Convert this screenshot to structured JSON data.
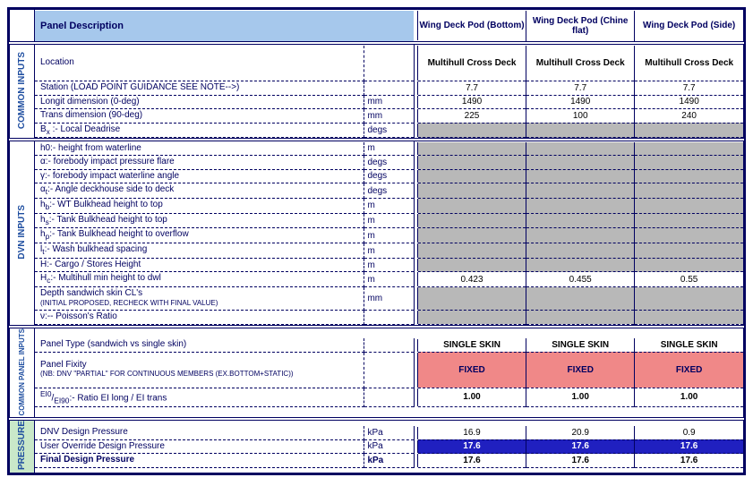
{
  "header": {
    "panel_desc": "Panel Description",
    "cols": [
      "Wing Deck Pod (Bottom)",
      "Wing Deck Pod (Chine flat)",
      "Wing Deck Pod (Side)"
    ]
  },
  "sections": {
    "common_inputs": {
      "label": "COMMON INPUTS",
      "rows": [
        {
          "desc": "Location",
          "unit": "",
          "vals": [
            "Multihull Cross Deck",
            "Multihull Cross Deck",
            "Multihull Cross Deck"
          ],
          "tall": true,
          "bold_vals": true
        },
        {
          "desc": "Station (LOAD POINT GUIDANCE SEE NOTE-->)",
          "unit": "",
          "vals": [
            "7.7",
            "7.7",
            "7.7"
          ]
        },
        {
          "desc": "Longit dimension (0-deg)",
          "unit": "mm",
          "vals": [
            "1490",
            "1490",
            "1490"
          ]
        },
        {
          "desc": "Trans dimension (90-deg)",
          "unit": "mm",
          "vals": [
            "225",
            "100",
            "240"
          ]
        },
        {
          "desc": "B<sub>x</sub> :- Local Deadrise",
          "unit": "degs",
          "vals": [
            "",
            "",
            ""
          ],
          "grey": true,
          "html": true
        }
      ]
    },
    "dvn_inputs": {
      "label": "DVN INPUTS",
      "rows": [
        {
          "desc": "h0:- height from waterline",
          "unit": "m",
          "vals": [
            "",
            "",
            ""
          ],
          "grey": true
        },
        {
          "desc": "α:- forebody impact pressure flare",
          "unit": "degs",
          "vals": [
            "",
            "",
            ""
          ],
          "grey": true
        },
        {
          "desc": "γ:- forebody impact waterline angle",
          "unit": "degs",
          "vals": [
            "",
            "",
            ""
          ],
          "grey": true
        },
        {
          "desc": "α<sub>t</sub>:- Angle deckhouse side to deck",
          "unit": "degs",
          "vals": [
            "",
            "",
            ""
          ],
          "grey": true,
          "html": true
        },
        {
          "desc": "h<sub>b</sub>:- WT Bulkhead height to top",
          "unit": "m",
          "vals": [
            "",
            "",
            ""
          ],
          "grey": true,
          "html": true
        },
        {
          "desc": "h<sub>s</sub>:- Tank Bulkhead height to top",
          "unit": "m",
          "vals": [
            "",
            "",
            ""
          ],
          "grey": true,
          "html": true
        },
        {
          "desc": "h<sub>p</sub>:- Tank Bulkhead height to overflow",
          "unit": "m",
          "vals": [
            "",
            "",
            ""
          ],
          "grey": true,
          "html": true
        },
        {
          "desc": "l<sub>t</sub>:- Wash bulkhead spacing",
          "unit": "m",
          "vals": [
            "",
            "",
            ""
          ],
          "grey": true,
          "html": true
        },
        {
          "desc": "H:- Cargo / Stores Height",
          "unit": "m",
          "vals": [
            "",
            "",
            ""
          ],
          "grey": true
        },
        {
          "desc": "H<sub>c</sub>:- Multihull min height to dwl",
          "unit": "m",
          "vals": [
            "0.423",
            "0.455",
            "0.55"
          ],
          "html": true
        },
        {
          "desc": "Depth sandwich skin CL's<br><span class='note'>(INITIAL PROPOSED, RECHECK WITH FINAL VALUE)</span>",
          "unit": "mm",
          "vals": [
            "",
            "",
            ""
          ],
          "grey": true,
          "html": true,
          "taller": true
        },
        {
          "desc": "ν:-- Poisson's Ratio",
          "unit": "",
          "vals": [
            "",
            "",
            ""
          ],
          "grey": true
        }
      ]
    },
    "common_panel_inputs": {
      "label": "COMMON PANEL INPUTS",
      "rows": [
        {
          "desc": "Panel Type (sandwich vs single skin)",
          "unit": "",
          "vals": [
            "SINGLE SKIN",
            "SINGLE SKIN",
            "SINGLE SKIN"
          ],
          "bold_vals": true
        },
        {
          "desc": "Panel Fixity<br><span class='note'>(NB: DNV \"PARTIAL\" FOR CONTINUOUS MEMBERS (EX.BOTTOM+STATIC))</span>",
          "unit": "",
          "vals": [
            "FIXED",
            "FIXED",
            "FIXED"
          ],
          "red": true,
          "html": true,
          "tall": true
        },
        {
          "desc": "<sup>EI0</sup>/<sub>EI90</sub>:- Ratio EI long / EI trans",
          "unit": "",
          "vals": [
            "1.00",
            "1.00",
            "1.00"
          ],
          "bold_vals": true,
          "html": true
        }
      ]
    },
    "pressure": {
      "label": "PRESSURE",
      "rows": [
        {
          "desc": "DNV Design Pressure",
          "unit": "kPa",
          "vals": [
            "16.9",
            "20.9",
            "0.9"
          ]
        },
        {
          "desc": "User Override Design Pressure",
          "unit": "kPa",
          "vals": [
            "17.6",
            "17.6",
            "17.6"
          ],
          "blue": true
        },
        {
          "desc": "Final Design Pressure",
          "unit": "kPa",
          "vals": [
            "17.6",
            "17.6",
            "17.6"
          ],
          "bold": true,
          "bold_vals": true
        }
      ]
    }
  },
  "colors": {
    "header_bg": "#a6c8ec",
    "border": "#000060",
    "grey_fill": "#b8b8b8",
    "red_fill": "#f08888",
    "blue_fill": "#2020c0",
    "pressure_bg": "#c9e8c9"
  }
}
